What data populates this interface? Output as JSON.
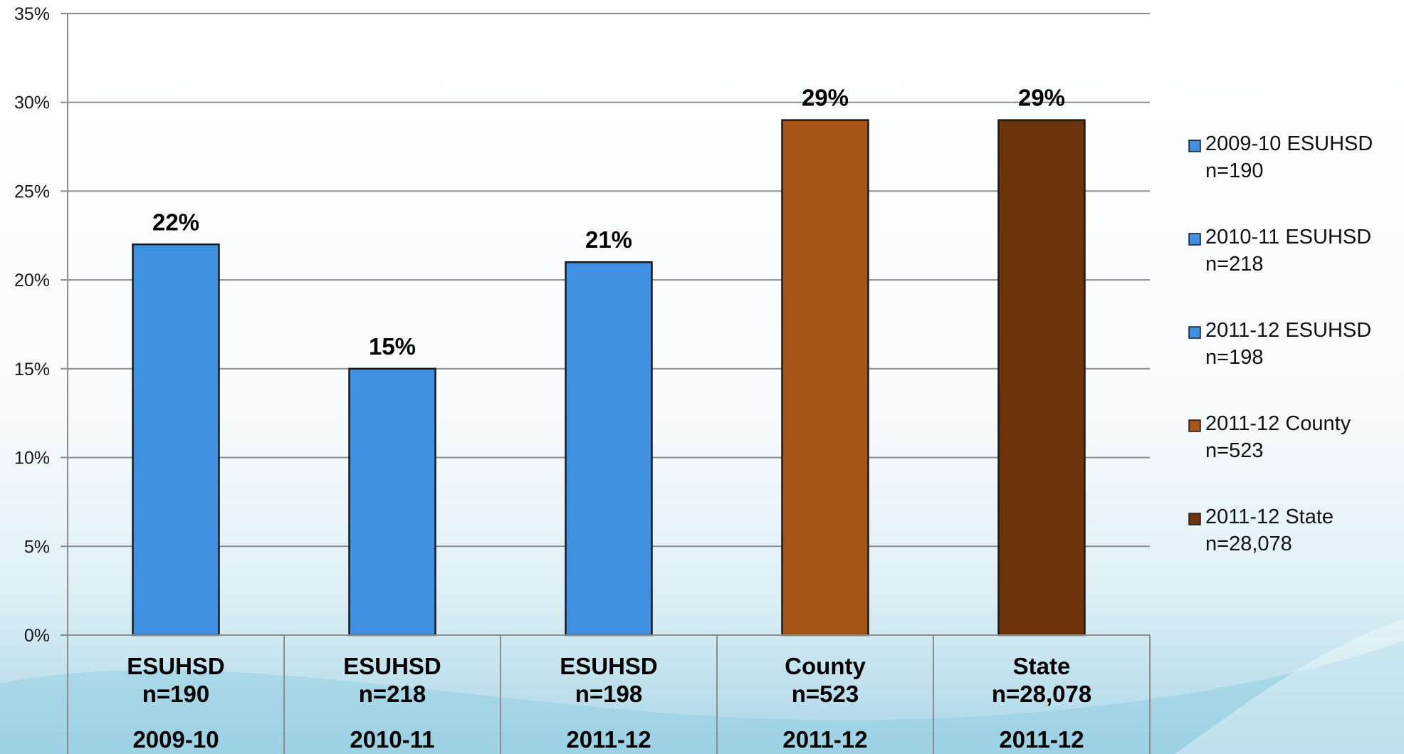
{
  "chart_data": {
    "type": "bar",
    "title": "",
    "xlabel": "",
    "ylabel": "",
    "ylim": [
      0,
      35
    ],
    "y_ticks": [
      0,
      5,
      10,
      15,
      20,
      25,
      30,
      35
    ],
    "y_tick_labels": [
      "0%",
      "5%",
      "10%",
      "15%",
      "20%",
      "25%",
      "30%",
      "35%"
    ],
    "grid": true,
    "legend_position": "right",
    "categories": [
      {
        "name": "ESUHSD",
        "n": "n=190",
        "year": "2009-10"
      },
      {
        "name": "ESUHSD",
        "n": "n=218",
        "year": "2010-11"
      },
      {
        "name": "ESUHSD",
        "n": "n=198",
        "year": "2011-12"
      },
      {
        "name": "County",
        "n": "n=523",
        "year": "2011-12"
      },
      {
        "name": "State",
        "n": "n=28,078",
        "year": "2011-12"
      }
    ],
    "values": [
      22,
      15,
      21,
      29,
      29
    ],
    "data_labels": [
      "22%",
      "15%",
      "21%",
      "29%",
      "29%"
    ],
    "colors": [
      "#3f8fe2",
      "#3f8fe2",
      "#3f8fe2",
      "#a55518",
      "#6e340c"
    ],
    "legend": [
      {
        "line1": "2009-10 ESUHSD",
        "line2": "n=190",
        "color": "#3f8fe2"
      },
      {
        "line1": "2010-11 ESUHSD",
        "line2": "n=218",
        "color": "#3f8fe2"
      },
      {
        "line1": "2011-12 ESUHSD",
        "line2": "n=198",
        "color": "#3f8fe2"
      },
      {
        "line1": "2011-12 County",
        "line2": "n=523",
        "color": "#a55518"
      },
      {
        "line1": "2011-12 State",
        "line2": "n=28,078",
        "color": "#6e340c"
      }
    ]
  }
}
